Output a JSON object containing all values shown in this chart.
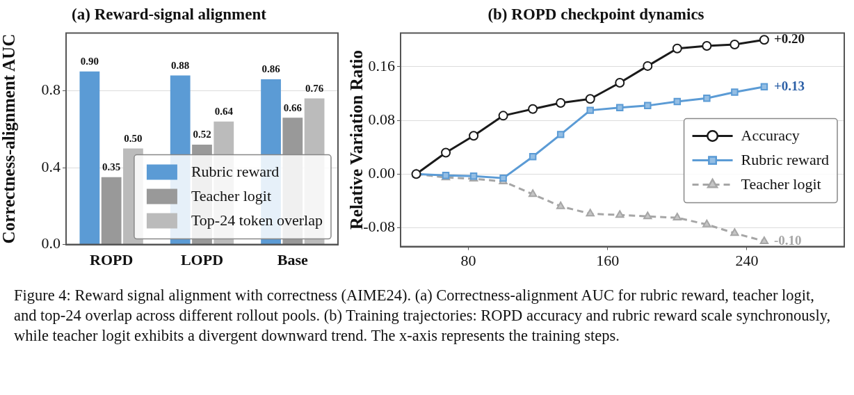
{
  "chart_data": [
    {
      "type": "bar",
      "title": "(a) Reward-signal alignment",
      "ylabel": "Correctness-alignment AUC",
      "categories": [
        "ROPD",
        "LOPD",
        "Base"
      ],
      "series": [
        {
          "name": "Rubric reward",
          "color": "#5b9bd5",
          "values": [
            0.9,
            0.88,
            0.86
          ],
          "value_labels": [
            "0.90",
            "0.88",
            "0.86"
          ]
        },
        {
          "name": "Teacher logit",
          "color": "#999999",
          "values": [
            0.35,
            0.52,
            0.66
          ],
          "value_labels": [
            "0.35",
            "0.52",
            "0.66"
          ]
        },
        {
          "name": "Top-24 token overlap",
          "color": "#bbbbbb",
          "values": [
            0.5,
            0.64,
            0.76
          ],
          "value_labels": [
            "0.50",
            "0.64",
            "0.76"
          ]
        }
      ],
      "ylim": [
        0,
        1.1
      ],
      "yticks": [
        {
          "value": 0,
          "label": "0.0"
        },
        0.4,
        0.8
      ],
      "grid": "y",
      "legend": "bottom right",
      "annotations": [
        "Figure 4:  Reward signal alignment with correctness (AIME24). (a) Correctness-alignment AUC for rubric reward, teacher logit, and top-24 overlap across different rollout pools. (b) Training trajectories: ROPD accuracy and rubric reward scale synchronously, while teacher logit exhibits a divergent downward trend. The x-axis represents the training steps."
      ]
    },
    {
      "type": "line",
      "title": "(b) ROPD checkpoint dynamics",
      "ylabel": "Relative Variation Ratio",
      "x": [
        50,
        67,
        83,
        100,
        117,
        133,
        150,
        167,
        183,
        200,
        217,
        233,
        250
      ],
      "series": [
        {
          "name": "Accuracy",
          "color": "#1a1a1a",
          "marker": "circle",
          "line_style": "solid",
          "values": [
            0,
            0.032,
            0.057,
            0.087,
            0.097,
            0.106,
            0.112,
            0.136,
            0.161,
            0.187,
            0.191,
            0.193,
            0.2
          ],
          "value_labels": [
            null,
            null,
            null,
            null,
            null,
            null,
            null,
            null,
            null,
            null,
            null,
            null,
            "+0.20"
          ]
        },
        {
          "name": "Rubric reward",
          "color": "#5b9bd5",
          "marker": "square",
          "line_style": "solid",
          "values": [
            0,
            -0.002,
            -0.003,
            -0.006,
            0.026,
            0.059,
            0.095,
            0.099,
            0.102,
            0.108,
            0.113,
            0.122,
            0.13
          ],
          "value_labels": [
            null,
            null,
            null,
            null,
            null,
            null,
            null,
            null,
            null,
            null,
            null,
            null,
            "+0.13"
          ]
        },
        {
          "name": "Teacher logit",
          "color": "#a6a6a6",
          "marker": "triangle",
          "line_style": "dashed",
          "values": [
            0,
            -0.005,
            -0.007,
            -0.011,
            -0.03,
            -0.048,
            -0.059,
            -0.061,
            -0.063,
            -0.065,
            -0.075,
            -0.088,
            -0.1
          ],
          "value_labels": [
            null,
            null,
            null,
            null,
            null,
            null,
            null,
            null,
            null,
            null,
            null,
            null,
            "-0.10"
          ]
        }
      ],
      "xlim": [
        41,
        296
      ],
      "xticks": [
        80,
        160,
        240
      ],
      "ylim": [
        -0.108,
        0.21
      ],
      "yticks": [
        -0.08,
        {
          "value": 0,
          "label": "0.00"
        },
        0.08,
        0.16
      ],
      "grid": "y",
      "legend": "center right"
    }
  ]
}
